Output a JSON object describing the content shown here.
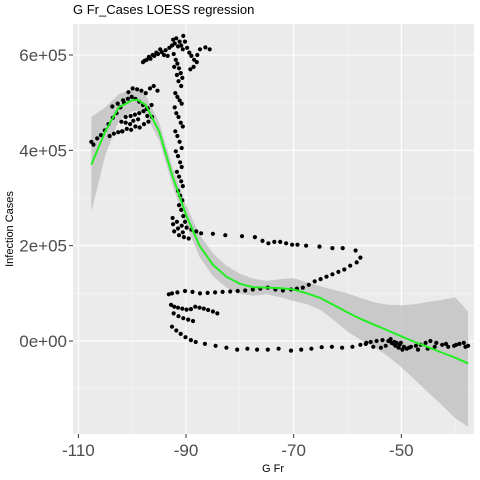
{
  "chart_data": {
    "type": "scatter",
    "title": "G Fr_Cases LOESS regression",
    "xlabel": "G Fr",
    "ylabel": "Infection Cases",
    "xlim": [
      -111.0,
      -36.5
    ],
    "ylim": [
      -195000,
      665000
    ],
    "x_ticks": [
      -110,
      -90,
      -70,
      -50
    ],
    "x_tick_labels": [
      "-110",
      "-90",
      "-70",
      "-50"
    ],
    "y_ticks": [
      0,
      200000,
      400000,
      600000
    ],
    "y_tick_labels": [
      "0e+00",
      "2e+05",
      "4e+05",
      "6e+05"
    ],
    "grid": true,
    "legend": "none",
    "colors": {
      "panel_background": "#ebebeb",
      "grid": "#ffffff",
      "points": "#000000",
      "loess_line": "#22ee22",
      "confidence_band": "#bdbdbd"
    },
    "points": [
      [
        -107.6,
        418000
      ],
      [
        -107.2,
        412000
      ],
      [
        -106.5,
        425000
      ],
      [
        -105.8,
        432000
      ],
      [
        -105.1,
        442000
      ],
      [
        -104.4,
        455000
      ],
      [
        -103.6,
        468000
      ],
      [
        -102.9,
        478000
      ],
      [
        -102.2,
        490000
      ],
      [
        -101.5,
        500000
      ],
      [
        -100.8,
        508000
      ],
      [
        -100.1,
        512000
      ],
      [
        -99.4,
        508000
      ],
      [
        -98.7,
        502000
      ],
      [
        -98.0,
        495000
      ],
      [
        -97.3,
        487000
      ],
      [
        -104.2,
        430000
      ],
      [
        -103.4,
        435000
      ],
      [
        -102.6,
        438000
      ],
      [
        -101.8,
        440000
      ],
      [
        -101.0,
        445000
      ],
      [
        -100.2,
        443000
      ],
      [
        -99.4,
        450000
      ],
      [
        -98.6,
        448000
      ],
      [
        -97.8,
        455000
      ],
      [
        -97.0,
        460000
      ],
      [
        -96.3,
        470000
      ],
      [
        -103.7,
        492000
      ],
      [
        -102.7,
        498000
      ],
      [
        -101.7,
        505000
      ],
      [
        -100.7,
        522000
      ],
      [
        -99.9,
        530000
      ],
      [
        -99.1,
        528000
      ],
      [
        -98.3,
        525000
      ],
      [
        -97.5,
        520000
      ],
      [
        -96.7,
        530000
      ],
      [
        -96.0,
        535000
      ],
      [
        -95.3,
        525000
      ],
      [
        -101.2,
        470000
      ],
      [
        -100.3,
        472000
      ],
      [
        -99.5,
        475000
      ],
      [
        -98.7,
        478000
      ],
      [
        -97.9,
        482000
      ],
      [
        -97.1,
        488000
      ],
      [
        -96.4,
        495000
      ],
      [
        -102.0,
        460000
      ],
      [
        -101.2,
        458000
      ],
      [
        -99.8,
        462000
      ],
      [
        -98.9,
        465000
      ],
      [
        -97.2,
        472000
      ],
      [
        -101.9,
        440000
      ],
      [
        -100.4,
        455000
      ],
      [
        -98.0,
        585000
      ],
      [
        -97.3,
        590000
      ],
      [
        -96.6,
        592000
      ],
      [
        -95.9,
        598000
      ],
      [
        -95.2,
        602000
      ],
      [
        -94.5,
        606000
      ],
      [
        -93.8,
        610000
      ],
      [
        -93.1,
        615000
      ],
      [
        -92.6,
        620000
      ],
      [
        -97.7,
        588000
      ],
      [
        -96.9,
        596000
      ],
      [
        -96.2,
        600000
      ],
      [
        -95.5,
        605000
      ],
      [
        -94.8,
        612000
      ],
      [
        -94.1,
        600000
      ],
      [
        -93.4,
        598000
      ],
      [
        -92.4,
        632000
      ],
      [
        -92.1,
        624000
      ],
      [
        -91.8,
        635000
      ],
      [
        -91.5,
        618000
      ],
      [
        -91.2,
        628000
      ],
      [
        -90.9,
        620000
      ],
      [
        -90.6,
        612000
      ],
      [
        -92.3,
        602000
      ],
      [
        -91.9,
        590000
      ],
      [
        -91.6,
        582000
      ],
      [
        -91.3,
        572000
      ],
      [
        -91.0,
        562000
      ],
      [
        -90.7,
        552000
      ],
      [
        -92.2,
        575000
      ],
      [
        -91.7,
        558000
      ],
      [
        -91.4,
        545000
      ],
      [
        -90.9,
        535000
      ],
      [
        -92.0,
        520000
      ],
      [
        -91.6,
        512000
      ],
      [
        -91.2,
        505000
      ],
      [
        -90.8,
        498000
      ],
      [
        -92.1,
        490000
      ],
      [
        -91.8,
        478000
      ],
      [
        -91.4,
        470000
      ],
      [
        -91.0,
        458000
      ],
      [
        -90.6,
        450000
      ],
      [
        -92.0,
        440000
      ],
      [
        -91.6,
        430000
      ],
      [
        -91.2,
        418000
      ],
      [
        -90.8,
        405000
      ],
      [
        -91.9,
        398000
      ],
      [
        -91.5,
        388000
      ],
      [
        -91.1,
        375000
      ],
      [
        -90.8,
        365000
      ],
      [
        -91.7,
        355000
      ],
      [
        -91.3,
        345000
      ],
      [
        -90.9,
        335000
      ],
      [
        -90.6,
        325000
      ],
      [
        -91.5,
        315000
      ],
      [
        -91.1,
        305000
      ],
      [
        -90.7,
        295000
      ],
      [
        -91.3,
        285000
      ],
      [
        -90.9,
        275000
      ],
      [
        -90.5,
        262000
      ],
      [
        -90.2,
        250000
      ],
      [
        -90.5,
        640000
      ],
      [
        -90.2,
        628000
      ],
      [
        -89.8,
        615000
      ],
      [
        -89.4,
        605000
      ],
      [
        -89.0,
        598000
      ],
      [
        -88.5,
        590000
      ],
      [
        -88.0,
        585000
      ],
      [
        -89.2,
        570000
      ],
      [
        -88.6,
        575000
      ],
      [
        -87.9,
        600000
      ],
      [
        -87.4,
        612000
      ],
      [
        -86.4,
        616000
      ],
      [
        -85.6,
        612000
      ],
      [
        -92.5,
        258000
      ],
      [
        -91.7,
        250000
      ],
      [
        -90.8,
        242000
      ],
      [
        -89.9,
        238000
      ],
      [
        -89.0,
        234000
      ],
      [
        -88.1,
        230000
      ],
      [
        -87.2,
        226000
      ],
      [
        -92.2,
        230000
      ],
      [
        -91.3,
        222000
      ],
      [
        -90.4,
        218000
      ],
      [
        -89.5,
        215000
      ],
      [
        -92.4,
        245000
      ],
      [
        -91.5,
        236000
      ],
      [
        -90.6,
        228000
      ],
      [
        -85.0,
        225000
      ],
      [
        -82.7,
        222000
      ],
      [
        -79.6,
        220000
      ],
      [
        -77.2,
        218000
      ],
      [
        -75.8,
        210000
      ],
      [
        -74.7,
        205000
      ],
      [
        -73.6,
        208000
      ],
      [
        -72.5,
        208000
      ],
      [
        -71.4,
        205000
      ],
      [
        -70.3,
        202000
      ],
      [
        -69.3,
        202000
      ],
      [
        -67.7,
        200000
      ],
      [
        -65.2,
        198000
      ],
      [
        -62.8,
        195000
      ],
      [
        -60.9,
        195000
      ],
      [
        -58.5,
        190000
      ],
      [
        -57.6,
        175000
      ],
      [
        -58.3,
        165000
      ],
      [
        -59.5,
        158000
      ],
      [
        -60.6,
        150000
      ],
      [
        -61.7,
        145000
      ],
      [
        -62.8,
        140000
      ],
      [
        -63.9,
        135000
      ],
      [
        -65.0,
        130000
      ],
      [
        -66.1,
        125000
      ],
      [
        -67.2,
        118000
      ],
      [
        -68.3,
        112000
      ],
      [
        -69.4,
        110000
      ],
      [
        -70.5,
        108000
      ],
      [
        -72.0,
        106000
      ],
      [
        -73.4,
        108000
      ],
      [
        -74.8,
        112000
      ],
      [
        -76.2,
        110000
      ],
      [
        -77.6,
        108000
      ],
      [
        -79.0,
        106000
      ],
      [
        -80.4,
        105000
      ],
      [
        -81.8,
        104000
      ],
      [
        -83.2,
        103000
      ],
      [
        -84.6,
        102000
      ],
      [
        -86.0,
        101000
      ],
      [
        -87.4,
        100000
      ],
      [
        -88.8,
        103000
      ],
      [
        -90.2,
        105000
      ],
      [
        -91.6,
        102000
      ],
      [
        -92.6,
        100000
      ],
      [
        -93.2,
        98000
      ],
      [
        -92.8,
        76000
      ],
      [
        -92.2,
        72000
      ],
      [
        -91.5,
        70000
      ],
      [
        -90.7,
        68000
      ],
      [
        -89.9,
        66000
      ],
      [
        -89.1,
        67000
      ],
      [
        -88.3,
        72000
      ],
      [
        -87.5,
        70000
      ],
      [
        -86.7,
        68000
      ],
      [
        -85.9,
        65000
      ],
      [
        -85.0,
        62000
      ],
      [
        -84.2,
        58000
      ],
      [
        -92.3,
        58000
      ],
      [
        -91.4,
        52000
      ],
      [
        -90.5,
        48000
      ],
      [
        -89.6,
        45000
      ],
      [
        -88.7,
        42000
      ],
      [
        -92.6,
        30000
      ],
      [
        -91.8,
        22000
      ],
      [
        -91.0,
        15000
      ],
      [
        -90.1,
        8000
      ],
      [
        -89.1,
        2000
      ],
      [
        -88.2,
        -2000
      ],
      [
        -86.5,
        -6000
      ],
      [
        -84.5,
        -10000
      ],
      [
        -82.5,
        -14000
      ],
      [
        -80.5,
        -18000
      ],
      [
        -78.6,
        -16000
      ],
      [
        -76.8,
        -18000
      ],
      [
        -74.8,
        -18000
      ],
      [
        -72.8,
        -16000
      ],
      [
        -70.5,
        -20000
      ],
      [
        -68.6,
        -18000
      ],
      [
        -66.7,
        -16000
      ],
      [
        -64.8,
        -13000
      ],
      [
        -62.9,
        -12000
      ],
      [
        -61.0,
        -14000
      ],
      [
        -59.1,
        -12000
      ],
      [
        -57.6,
        -8000
      ],
      [
        -56.5,
        -4000
      ],
      [
        -55.7,
        -2000
      ],
      [
        -54.6,
        0
      ],
      [
        -53.5,
        2000
      ],
      [
        -52.4,
        0
      ],
      [
        -51.8,
        -4000
      ],
      [
        -51.1,
        -10000
      ],
      [
        -50.5,
        -14000
      ],
      [
        -49.8,
        -18000
      ],
      [
        -49.0,
        -16000
      ],
      [
        -48.2,
        -12000
      ],
      [
        -47.3,
        -10000
      ],
      [
        -46.4,
        -8000
      ],
      [
        -45.5,
        -4000
      ],
      [
        -44.6,
        0
      ],
      [
        -43.5,
        -4000
      ],
      [
        -42.4,
        -8000
      ],
      [
        -41.3,
        -12000
      ],
      [
        -40.2,
        -10000
      ],
      [
        -39.2,
        -6000
      ],
      [
        -38.4,
        -4000
      ],
      [
        -37.6,
        -10000
      ],
      [
        -56.6,
        -6000
      ],
      [
        -55.2,
        -12000
      ],
      [
        -53.8,
        -14000
      ],
      [
        -52.9,
        -10000
      ],
      [
        -51.4,
        -6000
      ],
      [
        -50.1,
        -4000
      ],
      [
        -48.6,
        -14000
      ],
      [
        -46.9,
        -18000
      ],
      [
        -45.1,
        -16000
      ],
      [
        -43.8,
        -12000
      ],
      [
        -41.7,
        -6000
      ],
      [
        -39.8,
        -8000
      ],
      [
        -38.1,
        -12000
      ],
      [
        -50.9,
        -4000
      ],
      [
        -50.3,
        -8000
      ],
      [
        -49.5,
        -12000
      ],
      [
        -52.0,
        4000
      ],
      [
        -51.3,
        -2000
      ]
    ],
    "loess": {
      "x": [
        -107.6,
        -105,
        -102.5,
        -100,
        -99,
        -97.5,
        -95,
        -92.5,
        -90,
        -87.5,
        -85,
        -82.5,
        -80,
        -77.5,
        -75,
        -72.5,
        -70,
        -67.5,
        -65,
        -62.5,
        -60,
        -57.5,
        -55,
        -52.5,
        -50,
        -47.5,
        -45,
        -42.5,
        -40,
        -37.6
      ],
      "y": [
        370000,
        440000,
        490000,
        505000,
        506000,
        495000,
        440000,
        345000,
        265000,
        200000,
        160000,
        135000,
        120000,
        113000,
        112000,
        111000,
        108000,
        100000,
        90000,
        75000,
        60000,
        46000,
        34000,
        22000,
        10000,
        -2000,
        -13000,
        -24000,
        -35000,
        -47000
      ],
      "lower": [
        270000,
        390000,
        462000,
        482000,
        483000,
        475000,
        421000,
        326000,
        244000,
        177000,
        136000,
        112000,
        99000,
        95000,
        98000,
        92000,
        84000,
        77000,
        65000,
        43000,
        20000,
        2000,
        -13000,
        -32000,
        -55000,
        -81000,
        -108000,
        -134000,
        -162000,
        -180000
      ],
      "upper": [
        470000,
        490000,
        518000,
        528000,
        529000,
        515000,
        459000,
        364000,
        286000,
        223000,
        184000,
        158000,
        141000,
        131000,
        126000,
        130000,
        132000,
        123000,
        115000,
        107000,
        100000,
        90000,
        81000,
        76000,
        75000,
        77000,
        82000,
        86000,
        92000,
        62000
      ]
    }
  }
}
